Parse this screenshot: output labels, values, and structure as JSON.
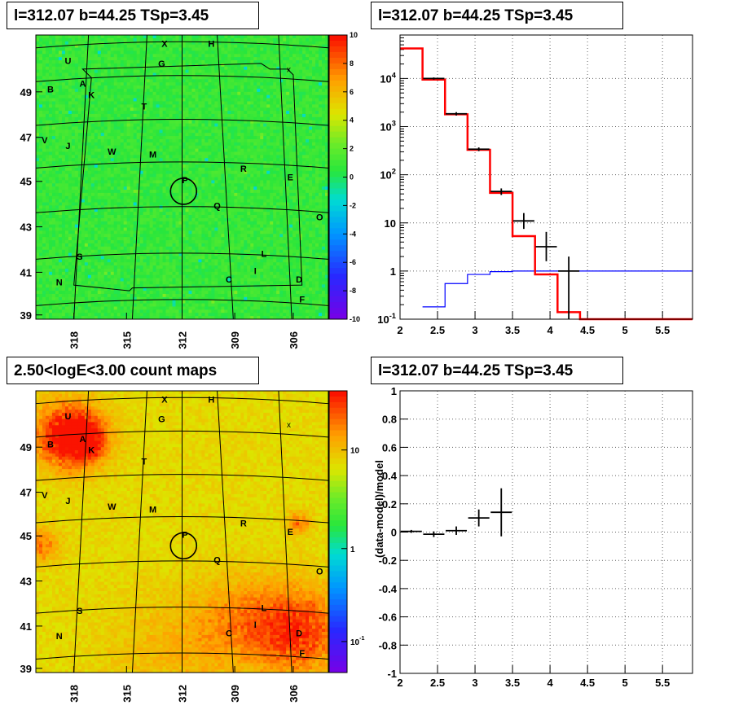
{
  "panels": {
    "tl_title": "l=312.07 b=44.25 TSp=3.45",
    "tr_title": "l=312.07 b=44.25 TSp=3.45",
    "bl_title": "2.50<logE<3.00 count maps",
    "br_title": "l=312.07 b=44.25 TSp=3.45"
  },
  "chart_data": [
    {
      "type": "heatmap",
      "name": "residual significance map",
      "xaxis_ticks": [
        "318",
        "315",
        "312",
        "309",
        "306"
      ],
      "yaxis_ticks": [
        "39",
        "41",
        "43",
        "45",
        "47",
        "49"
      ],
      "colorbar_ticks": [
        "10",
        "8",
        "6",
        "4",
        "2",
        "0",
        "-2",
        "-4",
        "-6",
        "-8",
        "-10"
      ],
      "colorbar_range": [
        -10,
        10
      ],
      "background_level": 0,
      "source_labels": [
        "X",
        "H",
        "U",
        "G",
        "A",
        "B",
        "K",
        "T",
        "V",
        "J",
        "W",
        "M",
        "R",
        "E",
        "P",
        "Q",
        "O",
        "S",
        "L",
        "I",
        "N",
        "C",
        "D",
        "F"
      ],
      "marker": "x"
    },
    {
      "type": "line",
      "name": "counts spectrum",
      "scale": "log-y",
      "xlim": [
        2,
        6
      ],
      "ylim": [
        0.1,
        80000
      ],
      "xaxis_ticks": [
        "2",
        "2.5",
        "3",
        "3.5",
        "4",
        "4.5",
        "5",
        "5.5"
      ],
      "yaxis_ticks": [
        "10^-1",
        "1",
        "10",
        "10^2",
        "10^3",
        "10^4"
      ],
      "series": [
        {
          "color": "#ff0000",
          "bin_edges": [
            2.0,
            2.3,
            2.6,
            2.9,
            3.2,
            3.5,
            3.8,
            4.1,
            4.4,
            6.0
          ],
          "values": [
            42000,
            9500,
            1800,
            330,
            42,
            5.3,
            0.85,
            0.14,
            0.1
          ]
        },
        {
          "color": "#0000ff",
          "bin_edges": [
            2.3,
            2.6,
            2.9,
            3.2,
            3.5,
            3.8,
            4.1,
            4.4,
            6.0
          ],
          "values": [
            0.18,
            0.55,
            0.85,
            0.97,
            1.0,
            1.0,
            1.0,
            1.0
          ]
        },
        {
          "color": "#000000",
          "x": [
            2.45,
            2.75,
            3.05,
            3.35,
            3.65,
            3.95,
            4.25
          ],
          "y": [
            10000,
            1850,
            340,
            45,
            11,
            3.2,
            1.0
          ],
          "err_lo": [
            9500,
            1700,
            310,
            38,
            7.5,
            1.6,
            0.1
          ],
          "err_hi": [
            10500,
            2000,
            370,
            52,
            16,
            6.5,
            2.0
          ]
        }
      ]
    },
    {
      "type": "heatmap",
      "name": "count map",
      "title": "2.50<logE<3.00 count maps",
      "xaxis_ticks": [
        "318",
        "315",
        "312",
        "309",
        "306"
      ],
      "yaxis_ticks": [
        "39",
        "41",
        "43",
        "45",
        "47",
        "49"
      ],
      "colorbar_ticks": [
        "10",
        "1",
        "10^-1"
      ],
      "colorbar_scale": "log",
      "source_labels": [
        "X",
        "H",
        "U",
        "G",
        "A",
        "B",
        "K",
        "T",
        "V",
        "J",
        "W",
        "M",
        "R",
        "E",
        "P",
        "Q",
        "O",
        "S",
        "L",
        "I",
        "N",
        "C",
        "D",
        "F"
      ],
      "marker": "x"
    },
    {
      "type": "scatter",
      "name": "fractional residuals",
      "ylabel": "(data-model)/model",
      "xlim": [
        2,
        6
      ],
      "ylim": [
        -1,
        1
      ],
      "xaxis_ticks": [
        "2",
        "2.5",
        "3",
        "3.5",
        "4",
        "4.5",
        "5",
        "5.5"
      ],
      "yaxis_ticks": [
        "1",
        "0.8",
        "0.6",
        "0.4",
        "0.2",
        "0",
        "-0.2",
        "-0.4",
        "-0.6",
        "-0.8",
        "-1"
      ],
      "points": [
        {
          "x": 2.15,
          "y": 0.005,
          "ey": 0.01
        },
        {
          "x": 2.45,
          "y": -0.015,
          "ey": 0.02
        },
        {
          "x": 2.75,
          "y": 0.01,
          "ey": 0.03
        },
        {
          "x": 3.05,
          "y": 0.1,
          "ey": 0.06
        },
        {
          "x": 3.35,
          "y": 0.14,
          "ey": 0.17
        }
      ],
      "series_color": "#000000"
    }
  ]
}
